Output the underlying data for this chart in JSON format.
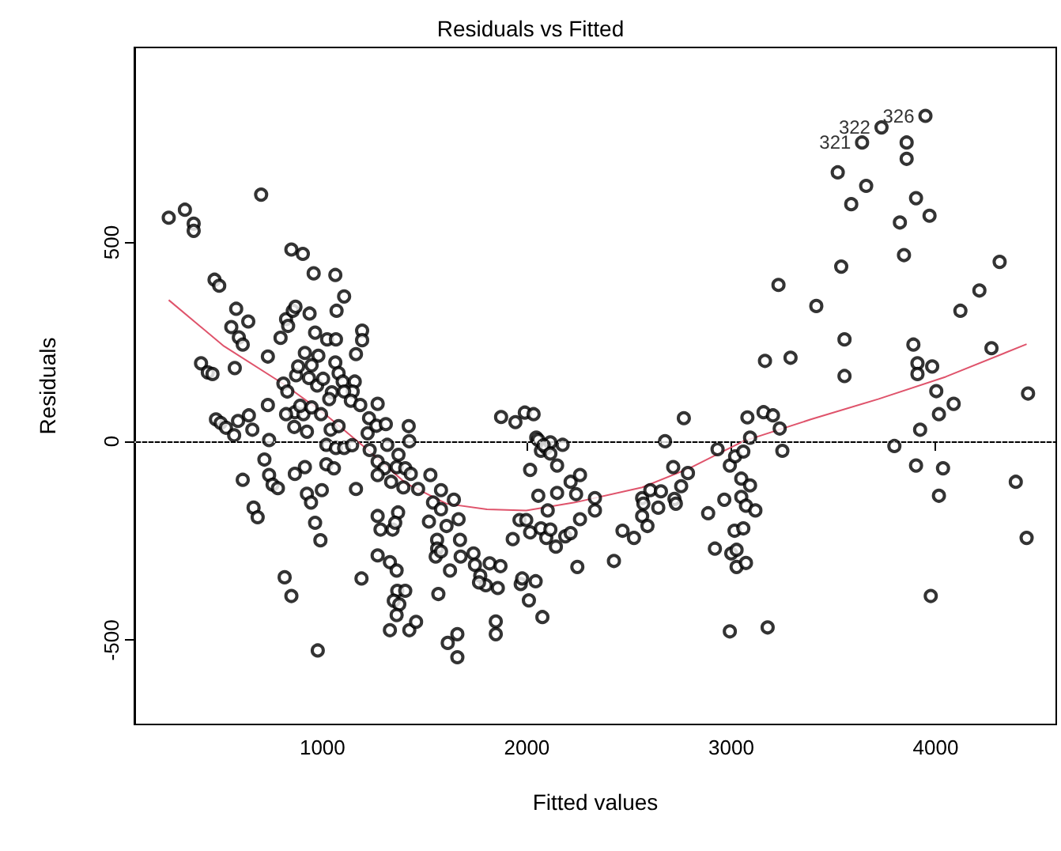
{
  "chart_data": {
    "type": "scatter",
    "title": "Residuals vs Fitted",
    "xlabel": "Fitted values",
    "ylabel": "Residuals",
    "xlim": [
      80,
      4590
    ],
    "ylim": [
      -712,
      990
    ],
    "xticks": [
      1000,
      2000,
      3000,
      4000
    ],
    "yticks": [
      -500,
      0,
      500
    ],
    "grid": false,
    "marker": "circle",
    "series": [
      {
        "color": "#000000",
        "x": [
          248,
          327,
          370,
          370,
          700,
          472,
          495,
          406,
          439,
          462,
          479,
          502,
          528,
          568,
          554,
          578,
          591,
          610,
          637,
          571,
          587,
          640,
          657,
          610,
          663,
          683,
          733,
          733,
          739,
          716,
          739,
          756,
          782,
          815,
          848,
          795,
          822,
          832,
          855,
          868,
          848,
          904,
          957,
          1063,
          1106,
          1069,
          1194,
          1194,
          1164,
          937,
          964,
          1023,
          1066,
          914,
          980,
          947,
          871,
          809,
          828,
          881,
          934,
          974,
          1003,
          1063,
          1079,
          1099,
          1158,
          1148,
          1046,
          1033,
          1106,
          1139,
          1185,
          1228,
          1270,
          865,
          907,
          891,
          947,
          822,
          862,
          924,
          1040,
          1079,
          993,
          1019,
          1066,
          1106,
          1145,
          1019,
          1056,
          914,
          865,
          997,
          924,
          944,
          964,
          990,
          977,
          1164,
          1191,
          1221,
          1264,
          1310,
          1422,
          1231,
          1270,
          1303,
          1363,
          1317,
          1425,
          1372,
          1405,
          1432,
          1270,
          1336,
          1396,
          1468,
          1528,
          1270,
          1284,
          1343,
          1370,
          1356,
          1270,
          1330,
          1363,
          1366,
          1349,
          1376,
          1363,
          1405,
          1330,
          1425,
          1458,
          1521,
          1541,
          1580,
          1580,
          1607,
          1561,
          1561,
          1554,
          1580,
          1624,
          1567,
          1613,
          1660,
          1660,
          1643,
          1666,
          1673,
          1676,
          1739,
          1746,
          1772,
          1799,
          1766,
          1818,
          1871,
          1858,
          1848,
          1848,
          1874,
          1944,
          1990,
          2033,
          1931,
          1964,
          1997,
          2016,
          1970,
          1977,
          2043,
          2010,
          2076,
          2016,
          2046,
          2056,
          2069,
          2095,
          2115,
          2082,
          2115,
          2175,
          2148,
          2056,
          2102,
          2148,
          2069,
          2095,
          2115,
          2142,
          2188,
          2214,
          2214,
          2241,
          2260,
          2260,
          2247,
          2333,
          2333,
          2426,
          2468,
          2524,
          2564,
          2570,
          2564,
          2590,
          2604,
          2643,
          2656,
          2676,
          2716,
          2722,
          2729,
          2755,
          2788,
          2768,
          2887,
          2920,
          2933,
          2966,
          2993,
          2993,
          3000,
          3016,
          3019,
          3026,
          3026,
          3049,
          3049,
          3059,
          3059,
          3072,
          3072,
          3092,
          3079,
          3092,
          3118,
          3158,
          3165,
          3178,
          3204,
          3231,
          3237,
          3250,
          3290,
          3416,
          3521,
          3538,
          3554,
          3554,
          3587,
          3640,
          3735,
          3858,
          3858,
          3950,
          3660,
          3904,
          3970,
          3825,
          3845,
          3891,
          3911,
          3911,
          3983,
          4003,
          4016,
          4088,
          4121,
          4214,
          4273,
          4313,
          3924,
          3798,
          3904,
          4036,
          4016,
          3976,
          4392,
          4445,
          4452
        ],
        "values": [
          562,
          582,
          547,
          529,
          620,
          406,
          391,
          196,
          173,
          169,
          55,
          46,
          34,
          15,
          287,
          333,
          261,
          243,
          301,
          184,
          51,
          65,
          29,
          -97,
          -167,
          -191,
          213,
          91,
          3,
          -46,
          -85,
          -109,
          -118,
          -342,
          -389,
          260,
          307,
          290,
          328,
          338,
          482,
          471,
          422,
          418,
          364,
          328,
          278,
          254,
          219,
          321,
          273,
          256,
          256,
          222,
          215,
          191,
          166,
          145,
          125,
          188,
          159,
          140,
          157,
          198,
          171,
          150,
          150,
          125,
          123,
          106,
          125,
          102,
          91,
          58,
          94,
          73,
          68,
          89,
          85,
          68,
          36,
          24,
          29,
          38,
          68,
          -9,
          -17,
          -17,
          -10,
          -58,
          -68,
          -65,
          -82,
          -123,
          -132,
          -154,
          -205,
          -249,
          -526,
          -120,
          -345,
          20,
          39,
          43,
          38,
          -22,
          -51,
          -68,
          -65,
          -9,
          0,
          -34,
          -68,
          -82,
          -85,
          -102,
          -116,
          -120,
          -85,
          -188,
          -222,
          -222,
          -179,
          -205,
          -287,
          -304,
          -325,
          -376,
          -401,
          -410,
          -437,
          -376,
          -475,
          -475,
          -454,
          -202,
          -154,
          -123,
          -171,
          -213,
          -248,
          -270,
          -290,
          -277,
          -325,
          -384,
          -507,
          -485,
          -543,
          -147,
          -196,
          -248,
          -290,
          -282,
          -311,
          -338,
          -362,
          -355,
          -307,
          -314,
          -369,
          -453,
          -485,
          61,
          48,
          72,
          68,
          -246,
          -198,
          -198,
          -229,
          -359,
          -345,
          -352,
          -400,
          -442,
          -72,
          9,
          3,
          -24,
          -17,
          -3,
          -10,
          -31,
          -9,
          -61,
          -137,
          -174,
          -130,
          -219,
          -243,
          -222,
          -265,
          -239,
          -231,
          -102,
          -133,
          -85,
          -196,
          -316,
          -143,
          -174,
          -301,
          -225,
          -243,
          -143,
          -157,
          -188,
          -213,
          -123,
          -167,
          -126,
          0,
          -65,
          -145,
          -157,
          -113,
          -80,
          58,
          -181,
          -270,
          -20,
          -147,
          -61,
          -478,
          -282,
          -225,
          -38,
          -316,
          -273,
          -140,
          -94,
          -26,
          -219,
          -162,
          -306,
          -111,
          60,
          9,
          -174,
          73,
          202,
          -468,
          65,
          393,
          32,
          -24,
          210,
          340,
          676,
          439,
          256,
          164,
          596,
          751,
          789,
          751,
          710,
          818,
          642,
          611,
          567,
          550,
          468,
          243,
          196,
          169,
          188,
          126,
          68,
          94,
          328,
          379,
          234,
          451,
          29,
          -12,
          -61,
          -68,
          -137,
          -389,
          -102,
          -243,
          120
        ]
      },
      {
        "type": "line",
        "color": "#df536b",
        "marker": "none",
        "x": [
          248,
          518,
          815,
          1013,
          1211,
          1409,
          1607,
          1805,
          1997,
          2234,
          2564,
          2795,
          3059,
          3389,
          3719,
          4049,
          4445
        ],
        "values": [
          355,
          239,
          142,
          68,
          -17,
          -106,
          -157,
          -171,
          -174,
          -154,
          -116,
          -68,
          0,
          55,
          106,
          162,
          244
        ]
      }
    ],
    "ref_lines": [
      {
        "axis": "y",
        "value": 0,
        "color": "#bebebe",
        "line_style": "dotted"
      }
    ],
    "annotations": [
      {
        "text": "321",
        "x": 3640,
        "y": 751
      },
      {
        "text": "322",
        "x": 3735,
        "y": 789
      },
      {
        "text": "326",
        "x": 3950,
        "y": 818
      }
    ]
  }
}
